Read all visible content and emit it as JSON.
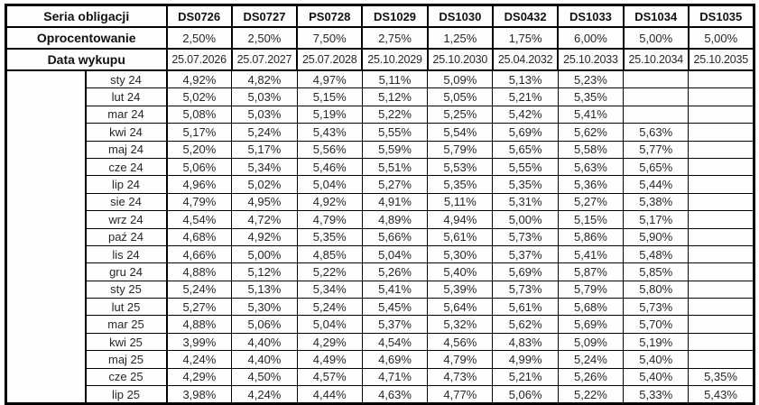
{
  "colors": {
    "border": "#000000",
    "header_text": "#111111",
    "value_text": "#262626",
    "background": "#ffffff"
  },
  "table": {
    "header": {
      "series_label": "Seria obligacji",
      "rate_label": "Oprocentowanie",
      "maturity_label": "Data wykupu",
      "series": [
        "DS0726",
        "DS0727",
        "PS0728",
        "DS1029",
        "DS1030",
        "DS0432",
        "DS1033",
        "DS1034",
        "DS1035"
      ],
      "rates": [
        "2,50%",
        "2,50%",
        "7,50%",
        "2,75%",
        "1,25%",
        "1,75%",
        "6,00%",
        "5,00%",
        "5,00%"
      ],
      "maturities": [
        "25.07.2026",
        "25.07.2027",
        "25.07.2028",
        "25.10.2029",
        "25.10.2030",
        "25.04.2032",
        "25.10.2033",
        "25.10.2034",
        "25.10.2035"
      ]
    },
    "rows": [
      {
        "month": "sty 24",
        "values": [
          "4,92%",
          "4,82%",
          "4,97%",
          "5,11%",
          "5,09%",
          "5,13%",
          "5,23%",
          "",
          ""
        ]
      },
      {
        "month": "lut 24",
        "values": [
          "5,02%",
          "5,03%",
          "5,15%",
          "5,12%",
          "5,05%",
          "5,21%",
          "5,35%",
          "",
          ""
        ]
      },
      {
        "month": "mar 24",
        "values": [
          "5,08%",
          "5,03%",
          "5,19%",
          "5,22%",
          "5,25%",
          "5,42%",
          "5,41%",
          "",
          ""
        ]
      },
      {
        "month": "kwi 24",
        "values": [
          "5,17%",
          "5,24%",
          "5,43%",
          "5,55%",
          "5,54%",
          "5,69%",
          "5,62%",
          "5,63%",
          ""
        ]
      },
      {
        "month": "maj 24",
        "values": [
          "5,20%",
          "5,17%",
          "5,56%",
          "5,59%",
          "5,79%",
          "5,65%",
          "5,58%",
          "5,77%",
          ""
        ]
      },
      {
        "month": "cze 24",
        "values": [
          "5,06%",
          "5,34%",
          "5,46%",
          "5,51%",
          "5,53%",
          "5,55%",
          "5,63%",
          "5,65%",
          ""
        ]
      },
      {
        "month": "lip 24",
        "values": [
          "4,96%",
          "5,02%",
          "5,04%",
          "5,27%",
          "5,35%",
          "5,35%",
          "5,36%",
          "5,44%",
          ""
        ]
      },
      {
        "month": "sie 24",
        "values": [
          "4,79%",
          "4,95%",
          "4,92%",
          "4,91%",
          "5,11%",
          "5,31%",
          "5,27%",
          "5,38%",
          ""
        ]
      },
      {
        "month": "wrz 24",
        "values": [
          "4,54%",
          "4,72%",
          "4,79%",
          "4,89%",
          "4,94%",
          "5,00%",
          "5,15%",
          "5,17%",
          ""
        ]
      },
      {
        "month": "paź 24",
        "values": [
          "4,68%",
          "4,92%",
          "5,35%",
          "5,66%",
          "5,61%",
          "5,73%",
          "5,86%",
          "5,90%",
          ""
        ]
      },
      {
        "month": "lis 24",
        "values": [
          "4,66%",
          "5,00%",
          "4,85%",
          "5,04%",
          "5,30%",
          "5,37%",
          "5,41%",
          "5,48%",
          ""
        ]
      },
      {
        "month": "gru 24",
        "values": [
          "4,88%",
          "5,12%",
          "5,22%",
          "5,26%",
          "5,40%",
          "5,69%",
          "5,87%",
          "5,85%",
          ""
        ]
      },
      {
        "month": "sty 25",
        "values": [
          "5,24%",
          "5,13%",
          "5,34%",
          "5,41%",
          "5,39%",
          "5,73%",
          "5,79%",
          "5,80%",
          ""
        ]
      },
      {
        "month": "lut 25",
        "values": [
          "5,27%",
          "5,30%",
          "5,24%",
          "5,45%",
          "5,64%",
          "5,61%",
          "5,68%",
          "5,73%",
          ""
        ]
      },
      {
        "month": "mar 25",
        "values": [
          "4,88%",
          "5,06%",
          "5,04%",
          "5,37%",
          "5,32%",
          "5,62%",
          "5,69%",
          "5,70%",
          ""
        ]
      },
      {
        "month": "kwi 25",
        "values": [
          "3,99%",
          "4,40%",
          "4,29%",
          "4,54%",
          "4,56%",
          "4,83%",
          "5,09%",
          "5,19%",
          ""
        ]
      },
      {
        "month": "maj 25",
        "values": [
          "4,24%",
          "4,40%",
          "4,49%",
          "4,69%",
          "4,79%",
          "4,99%",
          "5,24%",
          "5,40%",
          ""
        ]
      },
      {
        "month": "cze 25",
        "values": [
          "4,29%",
          "4,50%",
          "4,57%",
          "4,71%",
          "4,73%",
          "5,21%",
          "5,26%",
          "5,40%",
          "5,35%"
        ]
      },
      {
        "month": "lip 25",
        "values": [
          "3,98%",
          "4,24%",
          "4,44%",
          "4,63%",
          "4,77%",
          "5,06%",
          "5,22%",
          "5,33%",
          "5,43%"
        ]
      }
    ]
  }
}
